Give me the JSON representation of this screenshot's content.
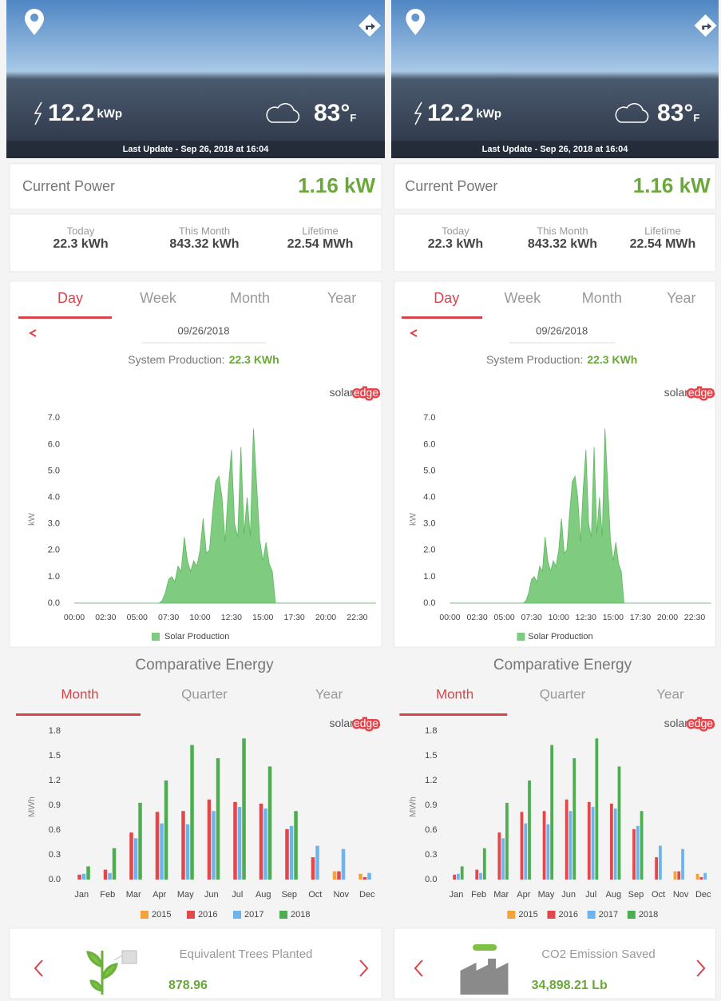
{
  "header": {
    "power": "12.2",
    "power_unit": "kWp",
    "temperature": "83°",
    "temperature_unit": "F",
    "last_update": "Last Update - Sep 26, 2018 at 16:04"
  },
  "current_power": {
    "label": "Current Power",
    "value": "1.16 kW"
  },
  "stats": [
    {
      "label": "Today",
      "value": "22.3 kWh"
    },
    {
      "label": "This Month",
      "value": "843.32 kWh"
    },
    {
      "label": "Lifetime",
      "value": "22.54 MWh"
    }
  ],
  "tabs": [
    "Day",
    "Week",
    "Month",
    "Year"
  ],
  "date": "09/26/2018",
  "production": {
    "label": "System Production:",
    "value": "22.3 KWh"
  },
  "logo": {
    "left": "solar",
    "right": "edge"
  },
  "comparative": {
    "title": "Comparative Energy",
    "tabs": [
      "Month",
      "Quarter",
      "Year"
    ]
  },
  "cards": [
    {
      "title": "Equivalent Trees Planted",
      "value": "878.96"
    },
    {
      "title": "CO2 Emission Saved",
      "value": "34,898.21 Lb"
    }
  ],
  "chart_data": [
    {
      "type": "area",
      "y_label": "kW",
      "x": [
        0,
        405,
        420,
        435,
        450,
        465,
        480,
        495,
        510,
        525,
        540,
        555,
        570,
        585,
        600,
        615,
        630,
        645,
        660,
        675,
        690,
        705,
        720,
        735,
        750,
        765,
        780,
        795,
        810,
        825,
        840,
        855,
        870,
        885,
        900,
        915,
        930,
        945,
        960,
        1440
      ],
      "series": [
        {
          "name": "Solar Production",
          "color": "#7fcb80",
          "values": [
            0,
            0,
            0.1,
            0.4,
            0.9,
            1.0,
            0.8,
            1.4,
            1.2,
            2.5,
            1.6,
            1.2,
            1.6,
            1.4,
            2.0,
            3.2,
            1.9,
            2.0,
            3.4,
            4.6,
            4.8,
            4.0,
            2.3,
            4.3,
            5.8,
            3.0,
            2.5,
            5.9,
            2.6,
            4.0,
            2.5,
            6.6,
            4.5,
            2.4,
            1.6,
            2.3,
            1.5,
            1.2,
            0,
            0
          ]
        }
      ],
      "xlim": [
        0,
        1440
      ],
      "xticks": [
        {
          "value": 0,
          "label": "00:00"
        },
        {
          "value": 150,
          "label": "02:30"
        },
        {
          "value": 300,
          "label": "05:00"
        },
        {
          "value": 450,
          "label": "07:30"
        },
        {
          "value": 600,
          "label": "10:00"
        },
        {
          "value": 750,
          "label": "12:30"
        },
        {
          "value": 900,
          "label": "15:00"
        },
        {
          "value": 1050,
          "label": "17:30"
        },
        {
          "value": 1200,
          "label": "20:00"
        },
        {
          "value": 1350,
          "label": "22:30"
        }
      ],
      "ylim": [
        0,
        7.4
      ],
      "yticks": [
        {
          "value": 0,
          "label": "0.0"
        },
        {
          "value": 1,
          "label": "1.0"
        },
        {
          "value": 2,
          "label": "2.0"
        },
        {
          "value": 3,
          "label": "3.0"
        },
        {
          "value": 4,
          "label": "4.0"
        },
        {
          "value": 5,
          "label": "5.0"
        },
        {
          "value": 6,
          "label": "6.0"
        },
        {
          "value": 7,
          "label": "7.0"
        }
      ]
    },
    {
      "type": "bar",
      "y_label": "MWh",
      "categories": [
        "Jan",
        "Feb",
        "Mar",
        "Apr",
        "May",
        "Jun",
        "Jul",
        "Aug",
        "Sep",
        "Oct",
        "Nov",
        "Dec"
      ],
      "series": [
        {
          "name": "2015",
          "color": "#f2a33a",
          "values": [
            null,
            null,
            null,
            null,
            null,
            null,
            null,
            null,
            null,
            null,
            0.1,
            0.07
          ]
        },
        {
          "name": "2016",
          "color": "#e2474b",
          "values": [
            0.06,
            0.12,
            0.57,
            0.82,
            0.83,
            0.97,
            0.94,
            0.92,
            0.61,
            0.27,
            0.1,
            0.03
          ]
        },
        {
          "name": "2017",
          "color": "#6db3ee",
          "values": [
            0.07,
            0.08,
            0.5,
            0.68,
            0.67,
            0.83,
            0.88,
            0.86,
            0.65,
            0.41,
            0.37,
            0.08
          ]
        },
        {
          "name": "2018",
          "color": "#4cae50",
          "values": [
            0.16,
            0.38,
            0.93,
            1.2,
            1.63,
            1.47,
            1.71,
            1.37,
            0.83,
            null,
            null,
            null
          ]
        }
      ],
      "ylim": [
        0,
        1.8
      ],
      "yticks": [
        {
          "value": 0,
          "label": "0.0"
        },
        0.3,
        0.6,
        0.9,
        1.2,
        1.5,
        1.8
      ]
    }
  ]
}
